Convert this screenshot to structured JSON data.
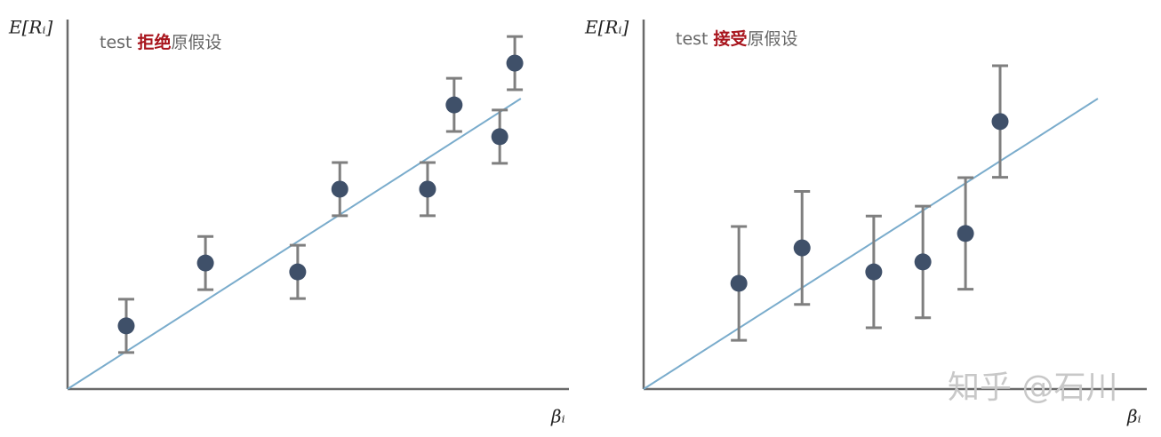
{
  "chart_data": [
    {
      "type": "scatter",
      "annotation": {
        "prefix": "test",
        "highlight": "拒绝",
        "suffix": "原假设"
      },
      "y_label": "E[Rᵢ]",
      "x_label": "βᵢ",
      "xlim": [
        0,
        100
      ],
      "ylim": [
        0,
        100
      ],
      "x": [
        11.7,
        27.5,
        45.9,
        54.3,
        71.8,
        77.1,
        86.2,
        89.2
      ],
      "values": [
        17.1,
        34.1,
        31.7,
        54.1,
        54.1,
        76.9,
        68.3,
        88.2
      ],
      "errors": [
        7.2,
        7.2,
        7.2,
        7.2,
        7.2,
        7.2,
        7.2,
        7.2
      ],
      "color": "#3f5069",
      "error_color": "#7f7f7f",
      "fit_line": {
        "x": [
          0,
          90.4
        ],
        "y": [
          0,
          78.6
        ],
        "color": "#7aaccc"
      }
    },
    {
      "type": "scatter",
      "annotation": {
        "prefix": "test",
        "highlight": "接受",
        "suffix": "原假设"
      },
      "y_label": "E[Rᵢ]",
      "x_label": "βᵢ",
      "xlim": [
        0,
        100
      ],
      "ylim": [
        0,
        100
      ],
      "x": [
        19.0,
        31.6,
        45.9,
        55.7,
        64.2,
        71.1
      ],
      "values": [
        28.6,
        38.2,
        31.7,
        34.4,
        42.1,
        72.4
      ],
      "errors": [
        15.4,
        15.3,
        15.1,
        15.1,
        15.1,
        15.1
      ],
      "color": "#3f5069",
      "error_color": "#7f7f7f",
      "fit_line": {
        "x": [
          0,
          90.6
        ],
        "y": [
          0,
          78.6
        ],
        "color": "#7aaccc"
      }
    }
  ],
  "watermark": "知乎 @石川"
}
